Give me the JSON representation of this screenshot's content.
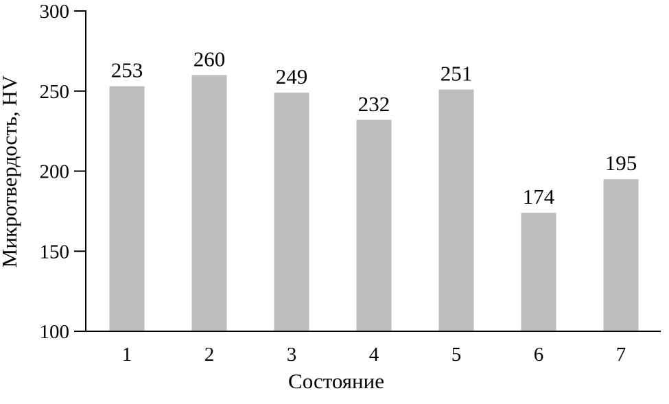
{
  "chart_data": {
    "type": "bar",
    "title": "",
    "xlabel": "Состояние",
    "ylabel": "Микротвердость, HV",
    "categories": [
      "1",
      "2",
      "3",
      "4",
      "5",
      "6",
      "7"
    ],
    "values": [
      253,
      260,
      249,
      232,
      251,
      174,
      195
    ],
    "data_labels": [
      "253",
      "260",
      "249",
      "232",
      "251",
      "174",
      "195"
    ],
    "ylim": [
      100,
      300
    ],
    "yticks": [
      "100",
      "150",
      "200",
      "250",
      "300"
    ],
    "grid": false,
    "bar_color": "#bdbdbd"
  }
}
